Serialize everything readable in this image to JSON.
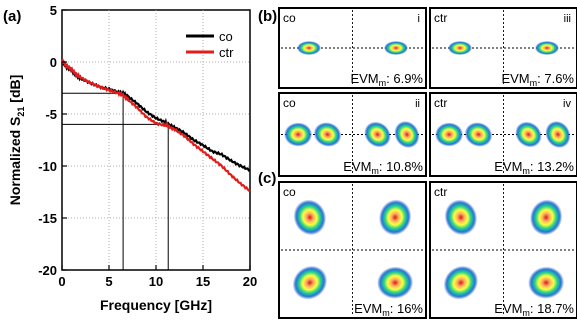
{
  "panel_labels": {
    "a": "(a)",
    "b": "(b)",
    "c": "(c)"
  },
  "chart_data": {
    "type": "line",
    "xlabel": "Frequency [GHz]",
    "ylabel_main": "Normalized S",
    "ylabel_sub": "21",
    "ylabel_unit": " [dB]",
    "xlim": [
      0,
      20
    ],
    "ylim": [
      -20,
      5
    ],
    "xticks": [
      "0",
      "5",
      "10",
      "15",
      "20"
    ],
    "yticks": [
      "5",
      "0",
      "-5",
      "-10",
      "-15",
      "-20"
    ],
    "legend_position": "top-right",
    "series": [
      {
        "name": "co",
        "color": "#000000",
        "x": [
          0,
          0.5,
          1,
          1.5,
          2,
          3,
          4,
          5,
          6,
          6.5,
          7,
          8,
          9,
          10,
          11,
          11.3,
          12,
          13,
          14,
          15,
          16,
          17,
          18,
          19,
          20
        ],
        "y": [
          0,
          -0.5,
          -0.8,
          -1.3,
          -1.6,
          -2.0,
          -2.4,
          -2.6,
          -2.9,
          -3.0,
          -3.3,
          -4.0,
          -4.8,
          -5.4,
          -5.8,
          -6.0,
          -6.3,
          -6.8,
          -7.5,
          -8.0,
          -8.6,
          -8.9,
          -9.5,
          -10.0,
          -10.4
        ]
      },
      {
        "name": "ctr",
        "color": "#e21b1b",
        "x": [
          0,
          0.5,
          1,
          1.5,
          2,
          3,
          4,
          5,
          6,
          6.5,
          7,
          8,
          9,
          10,
          11,
          11.3,
          12,
          13,
          14,
          15,
          16,
          17,
          18,
          19,
          20
        ],
        "y": [
          0.2,
          -0.4,
          -0.7,
          -1.2,
          -1.5,
          -2.0,
          -2.4,
          -2.7,
          -3.0,
          -3.2,
          -3.6,
          -4.4,
          -5.3,
          -5.9,
          -6.1,
          -6.2,
          -6.5,
          -7.1,
          -7.9,
          -8.6,
          -9.3,
          -10.0,
          -10.9,
          -11.7,
          -12.4
        ]
      }
    ],
    "reference_lines": [
      {
        "y": -3,
        "x": 6.5
      },
      {
        "y": -6,
        "x": 11.3
      }
    ]
  },
  "constellations": [
    {
      "id": "b-i",
      "label": "co",
      "roman": "i",
      "evm_prefix": "EVM",
      "evm_sub": "m",
      "evm_value": ": 6.9%"
    },
    {
      "id": "b-iii",
      "label": "ctr",
      "roman": "iii",
      "evm_prefix": "EVM",
      "evm_sub": "m",
      "evm_value": ": 7.6%"
    },
    {
      "id": "b-ii",
      "label": "co",
      "roman": "ii",
      "evm_prefix": "EVM",
      "evm_sub": "m",
      "evm_value": ": 10.8%"
    },
    {
      "id": "b-iv",
      "label": "ctr",
      "roman": "iv",
      "evm_prefix": "EVM",
      "evm_sub": "m",
      "evm_value": ": 13.2%"
    },
    {
      "id": "c-co",
      "label": "co",
      "roman": "",
      "evm_prefix": "EVM",
      "evm_sub": "m",
      "evm_value": ": 16%"
    },
    {
      "id": "c-ctr",
      "label": "ctr",
      "roman": "",
      "evm_prefix": "EVM",
      "evm_sub": "m",
      "evm_value": ": 18.7%"
    }
  ]
}
